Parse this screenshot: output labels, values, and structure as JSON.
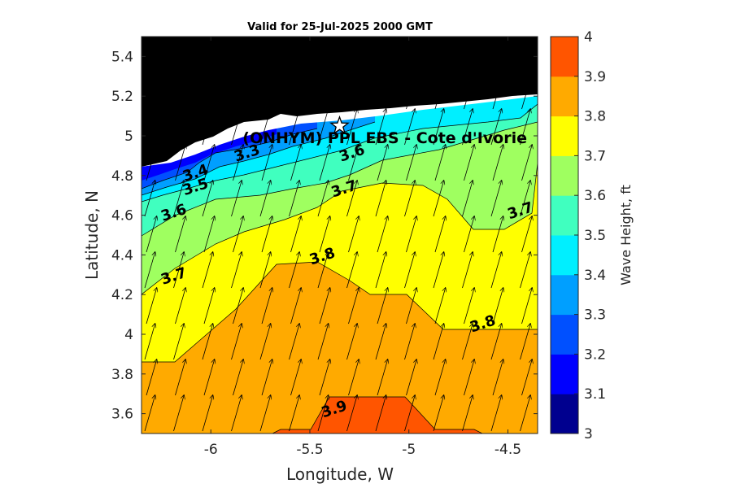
{
  "chart_data": {
    "type": "heatmap",
    "title": "Valid for 25-Jul-2025 2000 GMT",
    "xlabel": "Longitude, W",
    "ylabel": "Latitude, N",
    "xlim": [
      -6.35,
      -4.35
    ],
    "ylim": [
      3.5,
      5.5
    ],
    "xticks": [
      -6,
      -5.5,
      -5,
      -4.5
    ],
    "xtick_labels": [
      "-6",
      "-5.5",
      "-5",
      "-4.5"
    ],
    "yticks": [
      3.6,
      3.8,
      4.0,
      4.2,
      4.4,
      4.6,
      4.8,
      5.0,
      5.2,
      5.4
    ],
    "ytick_labels": [
      "3.6",
      "3.8",
      "4",
      "4.2",
      "4.4",
      "4.6",
      "4.8",
      "5",
      "5.2",
      "5.4"
    ],
    "colorbar": {
      "label": "Wave Height, ft",
      "min": 3.0,
      "max": 4.0,
      "ticks": [
        3,
        3.1,
        3.2,
        3.3,
        3.4,
        3.5,
        3.6,
        3.7,
        3.8,
        3.9,
        4
      ],
      "tick_labels": [
        "3",
        "3.1",
        "3.2",
        "3.3",
        "3.4",
        "3.5",
        "3.6",
        "3.7",
        "3.8",
        "3.9",
        "4"
      ],
      "colors": [
        "#00008f",
        "#0000ff",
        "#0050ff",
        "#009fff",
        "#00efff",
        "#40ffbf",
        "#9fff60",
        "#ffff00",
        "#ffaa00",
        "#ff5500"
      ]
    },
    "station": {
      "label": "(ONHYM) PPL EBS - Cote d'Ivorie",
      "lon": -5.35,
      "lat": 5.05
    },
    "land_color": "#000000",
    "grid": false,
    "contour_labels": [
      {
        "text": "3.3",
        "lon": -5.81,
        "lat": 4.89
      },
      {
        "text": "3.4",
        "lon": -6.07,
        "lat": 4.79
      },
      {
        "text": "3.5",
        "lon": -6.07,
        "lat": 4.72
      },
      {
        "text": "3.6",
        "lon": -5.28,
        "lat": 4.89
      },
      {
        "text": "3.6",
        "lon": -6.18,
        "lat": 4.59
      },
      {
        "text": "3.7",
        "lon": -5.32,
        "lat": 4.71
      },
      {
        "text": "3.7",
        "lon": -4.43,
        "lat": 4.6
      },
      {
        "text": "3.7",
        "lon": -6.18,
        "lat": 4.27
      },
      {
        "text": "3.8",
        "lon": -5.43,
        "lat": 4.37
      },
      {
        "text": "3.8",
        "lon": -4.62,
        "lat": 4.03
      },
      {
        "text": "3.9",
        "lon": -5.37,
        "lat": 3.6
      }
    ]
  }
}
